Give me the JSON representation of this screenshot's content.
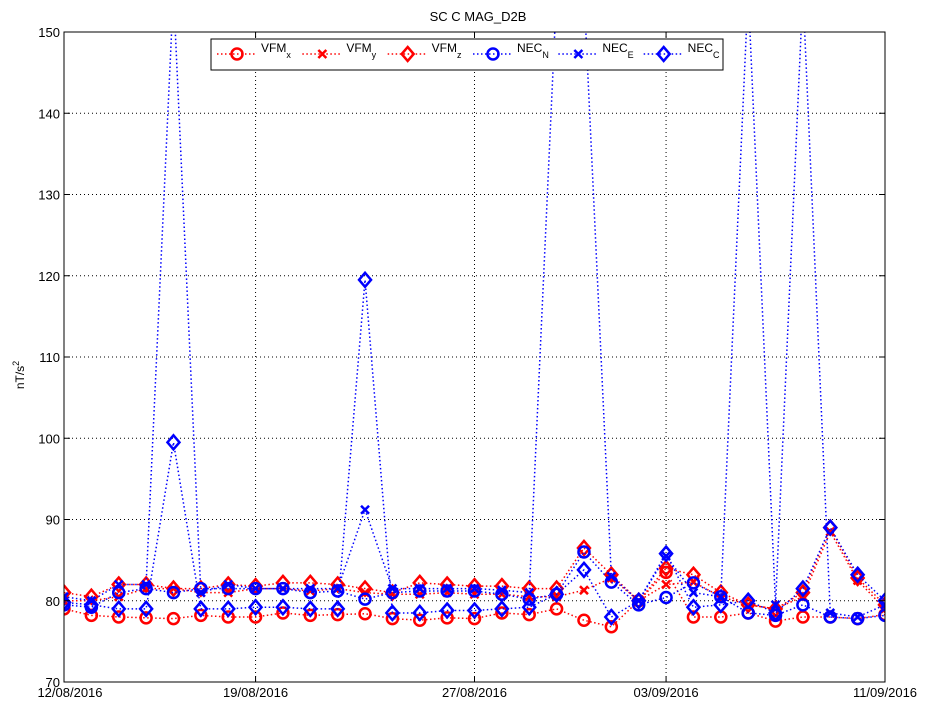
{
  "chart_data": {
    "type": "line",
    "title": "SC C MAG_D2B",
    "ylabel_base": "nT/s",
    "ylabel_sup": "2",
    "xlabel": "",
    "ylim": [
      70,
      150
    ],
    "yticks": [
      70,
      80,
      90,
      100,
      110,
      120,
      130,
      140,
      150
    ],
    "xlim": [
      "2016-08-12",
      "2016-09-11"
    ],
    "xtick_labels": [
      "12/08/2016",
      "19/08/2016",
      "27/08/2016",
      "03/09/2016",
      "11/09/2016"
    ],
    "xtick_dates": [
      "2016-08-12",
      "2016-08-19",
      "2016-08-27",
      "2016-09-03",
      "2016-09-11"
    ],
    "grid": true,
    "legend_position": "top",
    "x": [
      "2016-08-12",
      "2016-08-13",
      "2016-08-14",
      "2016-08-15",
      "2016-08-16",
      "2016-08-17",
      "2016-08-18",
      "2016-08-19",
      "2016-08-20",
      "2016-08-21",
      "2016-08-22",
      "2016-08-23",
      "2016-08-24",
      "2016-08-25",
      "2016-08-26",
      "2016-08-27",
      "2016-08-28",
      "2016-08-29",
      "2016-08-30",
      "2016-08-31",
      "2016-09-01",
      "2016-09-02",
      "2016-09-03",
      "2016-09-04",
      "2016-09-05",
      "2016-09-06",
      "2016-09-07",
      "2016-09-08",
      "2016-09-09",
      "2016-09-10",
      "2016-09-11"
    ],
    "series": [
      {
        "name": "VFM",
        "sub": "x",
        "color": "#ff0000",
        "marker": "circle",
        "values": [
          79,
          78.2,
          78,
          77.9,
          77.8,
          78.2,
          78,
          78,
          78.5,
          78.2,
          78.3,
          78.4,
          77.8,
          77.6,
          77.9,
          77.8,
          78.5,
          78.3,
          79,
          77.6,
          76.8,
          80,
          83.5,
          78,
          78,
          78.5,
          77.5,
          78,
          78,
          77.8,
          78.3
        ]
      },
      {
        "name": "VFM",
        "sub": "y",
        "color": "#ff0000",
        "marker": "x",
        "values": [
          80,
          80,
          80.5,
          81.5,
          81.5,
          81,
          81,
          81.5,
          81.5,
          81.2,
          81.5,
          81,
          80.8,
          80.8,
          81,
          80.8,
          80.8,
          80.5,
          80.5,
          81.3,
          82.8,
          80,
          82,
          82.3,
          80.5,
          79.5,
          79,
          80.5,
          88.5,
          82.5,
          79
        ]
      },
      {
        "name": "VFM",
        "sub": "z",
        "color": "#ff0000",
        "marker": "diamond",
        "values": [
          81,
          80.5,
          82,
          82,
          81.5,
          81.5,
          82,
          81.8,
          82.2,
          82.2,
          82,
          81.5,
          81,
          82.2,
          82,
          81.8,
          81.8,
          81.5,
          81.5,
          86.5,
          83.2,
          80,
          84,
          83.2,
          81,
          79.5,
          79,
          81,
          89,
          82.8,
          79.5
        ]
      },
      {
        "name": "NEC",
        "sub": "N",
        "color": "#0000ff",
        "marker": "circle",
        "values": [
          79.5,
          79.2,
          81,
          81.5,
          81,
          81.5,
          81.5,
          81.5,
          81.5,
          81,
          81.2,
          80.2,
          81,
          81.2,
          81.2,
          81.2,
          80.8,
          80.2,
          80.8,
          86,
          82.3,
          79.5,
          80.4,
          82.2,
          80.5,
          78.5,
          78.2,
          79.5,
          78,
          77.8,
          78.2
        ]
      },
      {
        "name": "NEC",
        "sub": "E",
        "color": "#0000ff",
        "marker": "x",
        "values": [
          80.5,
          80,
          82,
          82,
          155,
          81,
          82,
          81.5,
          81.5,
          81.5,
          81.5,
          91.2,
          81.5,
          81.5,
          81.5,
          81.5,
          81.3,
          81,
          155,
          155,
          83,
          80,
          85.5,
          81,
          80.5,
          155,
          79.5,
          155,
          78.5,
          78,
          79.5
        ]
      },
      {
        "name": "NEC",
        "sub": "C",
        "color": "#0000ff",
        "marker": "diamond",
        "values": [
          79.8,
          79.5,
          79,
          79,
          99.5,
          79,
          79,
          79.2,
          79.2,
          79,
          79,
          119.5,
          78.5,
          78.5,
          78.8,
          78.8,
          79,
          79.2,
          80.8,
          83.8,
          78,
          80,
          85.8,
          79.2,
          79.5,
          80,
          78.5,
          81.5,
          89,
          83.2,
          80
        ]
      }
    ]
  }
}
